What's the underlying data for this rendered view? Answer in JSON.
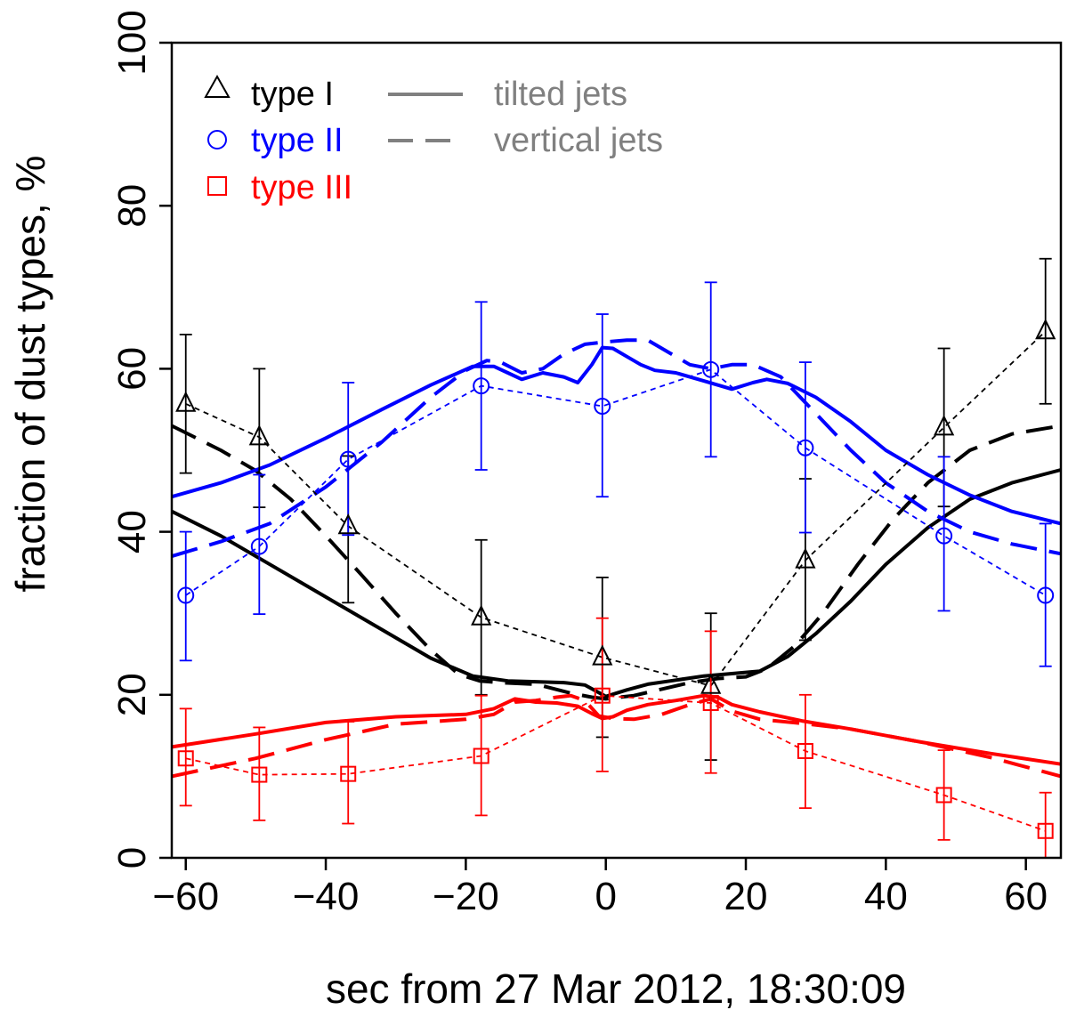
{
  "chart_data": {
    "type": "line",
    "title": "",
    "xlabel": "sec from 27 Mar 2012, 18:30:09",
    "ylabel": "fraction of dust types, %",
    "xlim": [
      -62,
      65
    ],
    "ylim": [
      0,
      100
    ],
    "x_ticks": [
      -60,
      -40,
      -20,
      0,
      20,
      40,
      60
    ],
    "y_ticks": [
      0,
      20,
      40,
      60,
      80,
      100
    ],
    "x_tick_labels": [
      "−60",
      "−40",
      "−20",
      "0",
      "20",
      "40",
      "60"
    ],
    "y_tick_labels": [
      "0",
      "20",
      "40",
      "60",
      "80",
      "100"
    ],
    "grid": false,
    "legend_position": "top-left",
    "legend": {
      "types": [
        {
          "label": "type I",
          "color": "#000000",
          "marker": "triangle"
        },
        {
          "label": "type II",
          "color": "#0000ff",
          "marker": "circle"
        },
        {
          "label": "type III",
          "color": "#ff0000",
          "marker": "square"
        }
      ],
      "lines": [
        {
          "label": "tilted jets",
          "style": "solid",
          "color": "#808080"
        },
        {
          "label": "vertical jets",
          "style": "dashed",
          "color": "#808080"
        }
      ]
    },
    "observed": [
      {
        "name": "type I",
        "color": "#000000",
        "marker": "triangle",
        "x": [
          -60,
          -49.5,
          -36.8,
          -17.8,
          -0.5,
          15,
          28.5,
          48.3,
          62.8
        ],
        "y": [
          55.7,
          51.6,
          40.7,
          29.5,
          24.6,
          21.1,
          36.5,
          52.8,
          64.6
        ],
        "err_low": [
          47.2,
          43.0,
          31.3,
          20.0,
          14.8,
          12.0,
          26.7,
          43.1,
          55.7
        ],
        "err_high": [
          64.2,
          60.0,
          49.3,
          39.0,
          34.4,
          30.0,
          46.5,
          62.5,
          73.5
        ]
      },
      {
        "name": "type II",
        "color": "#0000ff",
        "marker": "circle",
        "x": [
          -60,
          -49.5,
          -36.8,
          -17.8,
          -0.5,
          15,
          28.5,
          48.3,
          62.8
        ],
        "y": [
          32.2,
          38.2,
          48.9,
          57.9,
          55.4,
          59.9,
          50.3,
          39.5,
          32.2
        ],
        "err_low": [
          24.2,
          29.9,
          39.6,
          47.6,
          44.3,
          49.2,
          39.9,
          30.3,
          23.5
        ],
        "err_high": [
          40.0,
          47.0,
          58.3,
          68.2,
          66.7,
          70.6,
          60.8,
          49.2,
          41.0
        ]
      },
      {
        "name": "type III",
        "color": "#ff0000",
        "marker": "square",
        "x": [
          -60,
          -49.5,
          -36.8,
          -17.8,
          -0.5,
          15,
          28.5,
          48.3,
          62.8
        ],
        "y": [
          12.2,
          10.2,
          10.3,
          12.5,
          19.9,
          19.0,
          13.1,
          7.7,
          3.3
        ],
        "err_low": [
          6.4,
          4.6,
          4.2,
          5.2,
          10.6,
          10.4,
          6.1,
          2.2,
          0.0
        ],
        "err_high": [
          18.3,
          16.0,
          16.7,
          19.9,
          29.4,
          27.8,
          20.0,
          13.2,
          8.0
        ]
      }
    ],
    "model": [
      {
        "name": "type I",
        "style": "solid",
        "color": "#000000",
        "x": [
          -62,
          -55,
          -48,
          -40,
          -32,
          -25,
          -19,
          -14,
          -10,
          -6,
          -3,
          0,
          3,
          6,
          10,
          14,
          18,
          22,
          26,
          30,
          35,
          40,
          46,
          52,
          58,
          65
        ],
        "y": [
          42.5,
          39.5,
          36.0,
          32.0,
          28.0,
          24.5,
          22.3,
          21.7,
          21.6,
          21.5,
          21.2,
          19.8,
          20.6,
          21.3,
          21.8,
          22.3,
          22.6,
          22.9,
          24.7,
          27.5,
          31.5,
          36.0,
          40.5,
          44.0,
          46.0,
          47.6
        ]
      },
      {
        "name": "type I",
        "style": "dashed",
        "color": "#000000",
        "x": [
          -62,
          -55,
          -50,
          -45,
          -40,
          -35,
          -30,
          -25,
          -21,
          -18,
          -15,
          -10,
          -5,
          -2,
          0,
          4,
          8,
          12,
          16,
          20,
          23,
          27,
          31,
          36,
          41,
          46,
          52,
          58,
          65
        ],
        "y": [
          53.0,
          50.0,
          47.5,
          44.0,
          39.5,
          34.8,
          30.0,
          25.5,
          22.5,
          21.7,
          21.5,
          21.3,
          20.2,
          19.7,
          19.5,
          19.9,
          20.7,
          21.5,
          22.0,
          22.2,
          23.2,
          26.0,
          30.0,
          36.0,
          41.5,
          46.0,
          50.0,
          52.0,
          53.0
        ]
      },
      {
        "name": "type II",
        "style": "solid",
        "color": "#0000ff",
        "x": [
          -62,
          -55,
          -48,
          -40,
          -32,
          -25,
          -19,
          -16,
          -14,
          -12,
          -9,
          -6,
          -4,
          -2,
          -0.5,
          1,
          3,
          5,
          7,
          10,
          14,
          18,
          21,
          23,
          26,
          30,
          35,
          40,
          46,
          52,
          58,
          65
        ],
        "y": [
          44.3,
          46.0,
          48.2,
          51.5,
          55.0,
          58.0,
          60.3,
          60.3,
          59.5,
          58.7,
          59.5,
          59.0,
          58.3,
          60.5,
          62.6,
          62.5,
          61.5,
          60.5,
          59.8,
          59.5,
          58.5,
          57.5,
          58.3,
          58.7,
          58.2,
          56.5,
          53.5,
          50.0,
          47.0,
          44.5,
          42.5,
          41.0
        ]
      },
      {
        "name": "type II",
        "style": "dashed",
        "color": "#0000ff",
        "x": [
          -62,
          -55,
          -48,
          -40,
          -32,
          -25,
          -20,
          -17,
          -15,
          -12,
          -9,
          -6,
          -3,
          0,
          3,
          6,
          9,
          12,
          15,
          18,
          21,
          25,
          30,
          35,
          40,
          46,
          52,
          58,
          65
        ],
        "y": [
          37.0,
          38.8,
          41.0,
          45.5,
          51.0,
          56.5,
          59.8,
          61.0,
          60.8,
          59.5,
          60.0,
          61.8,
          63.0,
          63.3,
          63.5,
          63.5,
          62.0,
          60.5,
          60.0,
          60.5,
          60.5,
          59.0,
          54.5,
          50.0,
          46.0,
          42.5,
          40.0,
          38.5,
          37.3
        ]
      },
      {
        "name": "type III",
        "style": "solid",
        "color": "#ff0000",
        "x": [
          -62,
          -50,
          -40,
          -30,
          -20,
          -16,
          -13,
          -10,
          -7,
          -4,
          -2,
          -0.5,
          1,
          3,
          6,
          10,
          14,
          16,
          18,
          22,
          28,
          35,
          45,
          55,
          65
        ],
        "y": [
          13.6,
          15.2,
          16.6,
          17.3,
          17.6,
          18.3,
          19.5,
          19.1,
          19.0,
          18.6,
          17.7,
          17.1,
          17.3,
          18.1,
          18.8,
          19.3,
          19.9,
          19.7,
          18.8,
          17.9,
          16.8,
          15.8,
          14.2,
          12.8,
          11.5
        ]
      },
      {
        "name": "type III",
        "style": "dashed",
        "color": "#ff0000",
        "x": [
          -62,
          -50,
          -40,
          -30,
          -20,
          -16,
          -13,
          -10,
          -7,
          -5,
          -3,
          -1,
          1,
          4,
          8,
          12,
          15,
          18,
          22,
          28,
          35,
          45,
          55,
          65
        ],
        "y": [
          10.0,
          12.2,
          14.5,
          16.4,
          17.0,
          17.6,
          19.1,
          19.3,
          19.7,
          19.9,
          19.3,
          17.4,
          17.1,
          17.0,
          17.6,
          18.8,
          19.5,
          18.0,
          17.0,
          16.5,
          15.8,
          14.2,
          12.3,
          10.0
        ]
      }
    ]
  }
}
